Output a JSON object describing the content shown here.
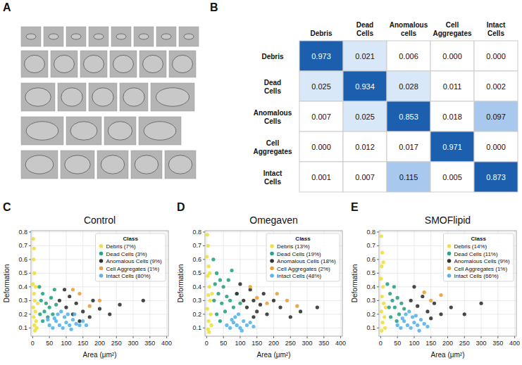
{
  "panel_labels": [
    "A",
    "B",
    "C",
    "D",
    "E"
  ],
  "chart_data": [
    {
      "type": "heatmap",
      "x_categories": [
        "Debris",
        "Dead Cells",
        "Anomalous cells",
        "Cell Aggregates",
        "Intact Cells"
      ],
      "y_categories": [
        "Debris",
        "Dead Cells",
        "Anomalous Cells",
        "Cell Aggregates",
        "Intact Cells"
      ],
      "cells": [
        [
          0.973,
          0.021,
          0.006,
          0.0,
          0.0
        ],
        [
          0.025,
          0.934,
          0.028,
          0.011,
          0.002
        ],
        [
          0.007,
          0.025,
          0.853,
          0.018,
          0.097
        ],
        [
          0.0,
          0.012,
          0.017,
          0.971,
          0.0
        ],
        [
          0.001,
          0.007,
          0.115,
          0.005,
          0.873
        ]
      ],
      "cell_labels": [
        [
          "0.973",
          "0.021",
          "0.006",
          "0.000",
          "0.000"
        ],
        [
          "0.025",
          "0.934",
          "0.028",
          "0.011",
          "0.002"
        ],
        [
          "0.007",
          "0.025",
          "0.853",
          "0.018",
          "0.097"
        ],
        [
          "0.000",
          "0.012",
          "0.017",
          "0.971",
          "0.000"
        ],
        [
          "0.001",
          "0.007",
          "0.115",
          "0.005",
          "0.873"
        ]
      ],
      "data_labels": true
    },
    {
      "type": "scatter",
      "title": "Control",
      "x_label": "Area (μm²)",
      "y_label": "Deformation",
      "legend_title": "Class",
      "legend": "upper right",
      "grid": true,
      "xlim": [
        -5,
        405
      ],
      "ylim": [
        0.04,
        0.81
      ],
      "xticks": [
        0,
        50,
        100,
        150,
        200,
        250,
        300,
        350,
        400
      ],
      "yticks": [
        0.1,
        0.2,
        0.3,
        0.4,
        0.5,
        0.6,
        0.7,
        0.8
      ],
      "series": [
        {
          "name": "Debris (7%)",
          "color": "#ece13f",
          "x": [
            2,
            3,
            5,
            1,
            4,
            6,
            2,
            8,
            3,
            10,
            5,
            12,
            7,
            15,
            9,
            4
          ],
          "values": [
            0.75,
            0.6,
            0.5,
            0.42,
            0.35,
            0.3,
            0.25,
            0.22,
            0.18,
            0.15,
            0.12,
            0.1,
            0.08,
            0.28,
            0.4,
            0.68
          ]
        },
        {
          "name": "Dead Cells (3%)",
          "color": "#2aa386",
          "x": [
            20,
            25,
            30,
            35,
            40,
            45,
            50,
            55,
            60,
            30,
            70,
            22,
            65
          ],
          "values": [
            0.4,
            0.3,
            0.35,
            0.22,
            0.28,
            0.18,
            0.25,
            0.32,
            0.2,
            0.15,
            0.27,
            0.2,
            0.38
          ]
        },
        {
          "name": "Anomalous Cells (9%)",
          "color": "#333333",
          "x": [
            80,
            100,
            110,
            120,
            130,
            150,
            170,
            200,
            95,
            140,
            230,
            260,
            330,
            180
          ],
          "values": [
            0.3,
            0.25,
            0.33,
            0.2,
            0.28,
            0.22,
            0.18,
            0.24,
            0.38,
            0.15,
            0.2,
            0.27,
            0.3,
            0.3
          ]
        },
        {
          "name": "Cell Aggregates (1%)",
          "color": "#f0a030",
          "x": [
            140,
            170,
            200,
            120
          ],
          "values": [
            0.35,
            0.26,
            0.3,
            0.38
          ]
        },
        {
          "name": "Intact Cells (80%)",
          "color": "#5ab4e8",
          "x": [
            50,
            60,
            70,
            80,
            90,
            100,
            110,
            120,
            130,
            140,
            75,
            95,
            85,
            105,
            65,
            115,
            150,
            160,
            45,
            125
          ],
          "values": [
            0.12,
            0.1,
            0.15,
            0.12,
            0.1,
            0.14,
            0.12,
            0.16,
            0.13,
            0.12,
            0.2,
            0.18,
            0.22,
            0.2,
            0.17,
            0.09,
            0.15,
            0.12,
            0.16,
            0.2
          ]
        }
      ]
    },
    {
      "type": "scatter",
      "title": "Omegaven",
      "x_label": "Area (μm²)",
      "y_label": "Deformation",
      "legend_title": "Class",
      "legend": "upper right",
      "grid": true,
      "xlim": [
        -5,
        405
      ],
      "ylim": [
        0.04,
        0.81
      ],
      "xticks": [
        0,
        50,
        100,
        150,
        200,
        250,
        300,
        350,
        400
      ],
      "yticks": [
        0.1,
        0.2,
        0.3,
        0.4,
        0.5,
        0.6,
        0.7,
        0.8
      ],
      "series": [
        {
          "name": "Debris (13%)",
          "color": "#ece13f",
          "x": [
            2,
            4,
            1,
            6,
            3,
            8,
            5,
            10,
            2,
            12,
            6,
            14,
            4,
            9,
            16,
            7
          ],
          "values": [
            0.78,
            0.7,
            0.62,
            0.55,
            0.48,
            0.4,
            0.34,
            0.3,
            0.24,
            0.2,
            0.15,
            0.12,
            0.09,
            0.5,
            0.35,
            0.07
          ]
        },
        {
          "name": "Dead Cells (19%)",
          "color": "#2aa386",
          "x": [
            20,
            30,
            25,
            40,
            35,
            50,
            45,
            60,
            55,
            70,
            80,
            65,
            30,
            90,
            40,
            100,
            75,
            22
          ],
          "values": [
            0.6,
            0.5,
            0.42,
            0.45,
            0.35,
            0.4,
            0.28,
            0.33,
            0.22,
            0.3,
            0.25,
            0.45,
            0.2,
            0.35,
            0.15,
            0.28,
            0.52,
            0.3
          ]
        },
        {
          "name": "Anomalous Cells (18%)",
          "color": "#333333",
          "x": [
            90,
            110,
            120,
            130,
            140,
            150,
            160,
            180,
            200,
            220,
            250,
            280,
            330,
            100,
            170,
            140
          ],
          "values": [
            0.35,
            0.3,
            0.25,
            0.38,
            0.3,
            0.22,
            0.27,
            0.2,
            0.3,
            0.25,
            0.18,
            0.22,
            0.25,
            0.42,
            0.35,
            0.18
          ]
        },
        {
          "name": "Cell Aggregates (2%)",
          "color": "#f0a030",
          "x": [
            150,
            180,
            210,
            240,
            130,
            270
          ],
          "values": [
            0.32,
            0.28,
            0.35,
            0.3,
            0.4,
            0.26
          ]
        },
        {
          "name": "Intact Cells (48%)",
          "color": "#5ab4e8",
          "x": [
            60,
            70,
            80,
            90,
            100,
            110,
            120,
            85,
            95,
            75,
            130,
            105,
            140
          ],
          "values": [
            0.12,
            0.1,
            0.14,
            0.12,
            0.1,
            0.15,
            0.12,
            0.18,
            0.2,
            0.16,
            0.14,
            0.08,
            0.11
          ]
        }
      ]
    },
    {
      "type": "scatter",
      "title": "SMOFlipid",
      "x_label": "Area (μm²)",
      "y_label": "Deformation",
      "legend_title": "Class",
      "legend": "upper right",
      "grid": true,
      "xlim": [
        -5,
        405
      ],
      "ylim": [
        0.04,
        0.81
      ],
      "xticks": [
        0,
        50,
        100,
        150,
        200,
        250,
        300,
        350,
        400
      ],
      "yticks": [
        0.1,
        0.2,
        0.3,
        0.4,
        0.5,
        0.6,
        0.7,
        0.8
      ],
      "series": [
        {
          "name": "Debris (14%)",
          "color": "#ece13f",
          "x": [
            2,
            5,
            3,
            1,
            7,
            4,
            9,
            2,
            11,
            6,
            13,
            3,
            15,
            8
          ],
          "values": [
            0.77,
            0.65,
            0.55,
            0.46,
            0.4,
            0.33,
            0.28,
            0.22,
            0.18,
            0.14,
            0.1,
            0.08,
            0.25,
            0.58
          ]
        },
        {
          "name": "Dead Cells (11%)",
          "color": "#2aa386",
          "x": [
            20,
            28,
            35,
            42,
            50,
            55,
            62,
            30,
            70,
            40,
            25,
            48
          ],
          "values": [
            0.42,
            0.35,
            0.3,
            0.25,
            0.32,
            0.2,
            0.28,
            0.18,
            0.24,
            0.4,
            0.25,
            0.15
          ]
        },
        {
          "name": "Anomalous Cells (9%)",
          "color": "#333333",
          "x": [
            90,
            110,
            125,
            140,
            160,
            180,
            210,
            250,
            300,
            100,
            150
          ],
          "values": [
            0.3,
            0.26,
            0.33,
            0.22,
            0.28,
            0.2,
            0.25,
            0.2,
            0.28,
            0.4,
            0.17
          ]
        },
        {
          "name": "Cell Aggregates (1%)",
          "color": "#f0a030",
          "x": [
            150,
            180,
            130
          ],
          "values": [
            0.3,
            0.34,
            0.36
          ]
        },
        {
          "name": "Intact Cells (66%)",
          "color": "#5ab4e8",
          "x": [
            50,
            60,
            70,
            80,
            90,
            100,
            110,
            120,
            130,
            75,
            95,
            85,
            105,
            65,
            140,
            115
          ],
          "values": [
            0.12,
            0.1,
            0.15,
            0.12,
            0.1,
            0.14,
            0.12,
            0.16,
            0.13,
            0.2,
            0.18,
            0.22,
            0.19,
            0.17,
            0.11,
            0.08
          ]
        }
      ]
    }
  ]
}
